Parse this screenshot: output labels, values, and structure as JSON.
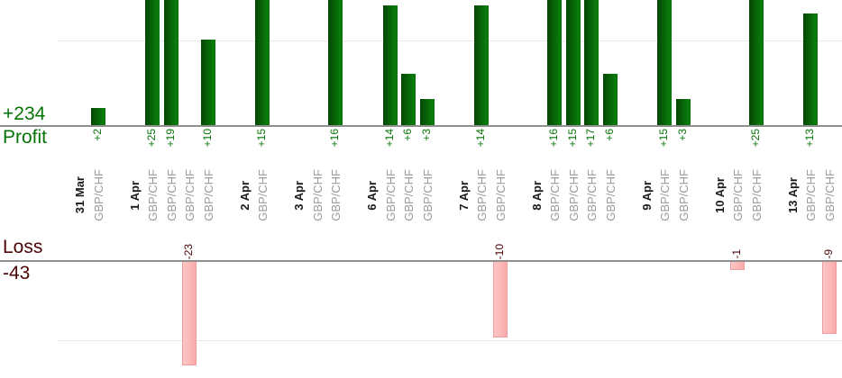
{
  "profit_chart": {
    "total": "+234",
    "label": "Profit",
    "text_color": "#067306",
    "bar_color_dark": "#054505",
    "bar_color_light": "#0a7d0a",
    "bar_color_edge": "#087008"
  },
  "loss_chart": {
    "total": "-43",
    "label": "Loss",
    "text_color": "#4d0505",
    "bar_fill_light": "#fdc6c6",
    "bar_fill_dark": "#faabab",
    "bar_border": "#f19c9c"
  },
  "axis_color": "#8f8f8f",
  "gridline_color": "#ece6e6",
  "chart_data": {
    "type": "bar",
    "orientation": "vertical",
    "description": "Per-trade profit (green, upper pane) and loss (pink, lower pane) grouped by close date",
    "series": [
      {
        "name": "Profit",
        "total": 234,
        "color": "#0a7d0a"
      },
      {
        "name": "Loss",
        "total": -43,
        "color": "#faabab"
      }
    ],
    "gridlines": {
      "profit_at": 10,
      "loss_at": -10
    },
    "groups": [
      {
        "date": "31 Mar",
        "trades": [
          {
            "symbol": "GBP/CHF",
            "value": 2
          }
        ]
      },
      {
        "date": "1 Apr",
        "trades": [
          {
            "symbol": "GBP/CHF",
            "value": 25
          },
          {
            "symbol": "GBP/CHF",
            "value": 19
          },
          {
            "symbol": "GBP/CHF",
            "value": -23
          },
          {
            "symbol": "GBP/CHF",
            "value": 10
          }
        ]
      },
      {
        "date": "2 Apr",
        "trades": [
          {
            "symbol": "GBP/CHF",
            "value": 15
          }
        ]
      },
      {
        "date": "3 Apr",
        "trades": [
          {
            "symbol": "GBP/CHF",
            "value": 0
          },
          {
            "symbol": "GBP/CHF",
            "value": 16
          }
        ]
      },
      {
        "date": "6 Apr",
        "trades": [
          {
            "symbol": "GBP/CHF",
            "value": 14
          },
          {
            "symbol": "GBP/CHF",
            "value": 6
          },
          {
            "symbol": "GBP/CHF",
            "value": 3
          }
        ]
      },
      {
        "date": "7 Apr",
        "trades": [
          {
            "symbol": "GBP/CHF",
            "value": 14
          },
          {
            "symbol": "GBP/CHF",
            "value": -10
          }
        ]
      },
      {
        "date": "8 Apr",
        "trades": [
          {
            "symbol": "GBP/CHF",
            "value": 16
          },
          {
            "symbol": "GBP/CHF",
            "value": 15
          },
          {
            "symbol": "GBP/CHF",
            "value": 17
          },
          {
            "symbol": "GBP/CHF",
            "value": 6
          }
        ]
      },
      {
        "date": "9 Apr",
        "trades": [
          {
            "symbol": "GBP/CHF",
            "value": 15
          },
          {
            "symbol": "GBP/CHF",
            "value": 3
          }
        ]
      },
      {
        "date": "10 Apr",
        "trades": [
          {
            "symbol": "GBP/CHF",
            "value": -1
          },
          {
            "symbol": "GBP/CHF",
            "value": 25
          }
        ]
      },
      {
        "date": "13 Apr",
        "trades": [
          {
            "symbol": "GBP/CHF",
            "value": 13
          },
          {
            "symbol": "GBP/CHF",
            "value": -9
          }
        ]
      }
    ]
  }
}
